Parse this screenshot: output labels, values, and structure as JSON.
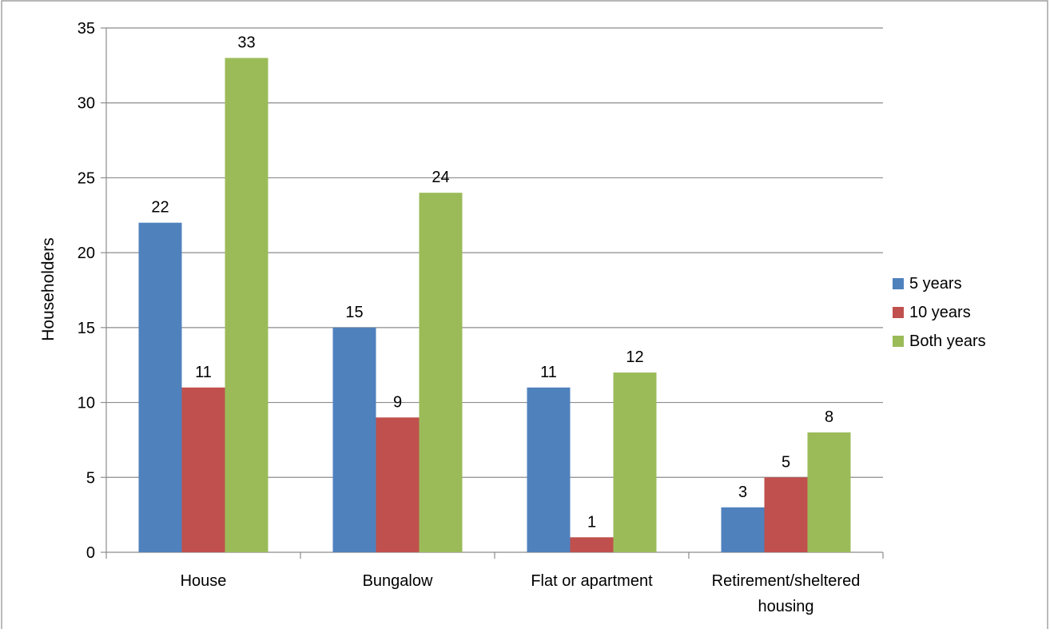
{
  "chart_data": {
    "type": "bar",
    "title": "",
    "xlabel": "",
    "ylabel": "Householders",
    "ylim": [
      0,
      35
    ],
    "yticks": [
      0,
      5,
      10,
      15,
      20,
      25,
      30,
      35
    ],
    "grid": true,
    "legend_position": "right",
    "categories": [
      "House",
      "Bungalow",
      "Flat or apartment",
      "Retirement/sheltered housing"
    ],
    "series": [
      {
        "name": "5 years",
        "color": "#4F81BD",
        "values": [
          22,
          15,
          11,
          3
        ]
      },
      {
        "name": "10 years",
        "color": "#C0504D",
        "values": [
          11,
          9,
          1,
          5
        ]
      },
      {
        "name": "Both years",
        "color": "#9BBB59",
        "values": [
          33,
          24,
          12,
          8
        ]
      }
    ]
  }
}
